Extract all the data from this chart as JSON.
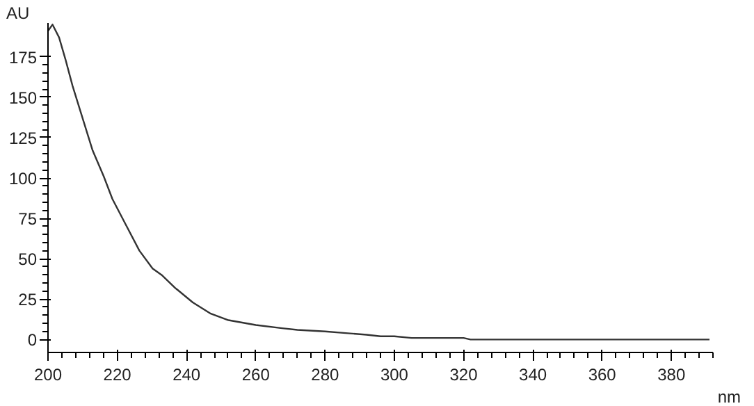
{
  "chart_data": {
    "type": "line",
    "ylabel": "AU",
    "xlabel": "nm",
    "x": [
      200,
      201.3,
      203.2,
      205.1,
      207.1,
      209.7,
      212.9,
      216.1,
      218.6,
      222.5,
      226.4,
      230.2,
      232.8,
      236.7,
      241.8,
      247,
      252.1,
      260,
      267.6,
      272,
      280,
      286,
      292,
      296,
      300,
      305,
      320,
      322,
      340,
      360,
      380,
      391
    ],
    "series": [
      {
        "color": "#333333",
        "values": [
          191,
          195,
          187,
          173,
          157,
          139,
          117,
          101,
          87,
          71,
          55,
          44,
          40,
          32,
          23,
          16,
          12,
          9,
          7,
          6,
          5,
          4,
          3,
          2,
          2,
          1,
          1,
          0,
          0,
          0,
          0,
          0
        ]
      }
    ],
    "xlim": [
      200,
      392
    ],
    "ylim": [
      -8,
      196
    ],
    "xticks": [
      200,
      220,
      240,
      260,
      280,
      300,
      320,
      340,
      360,
      380
    ],
    "yticks": [
      175,
      150,
      125,
      100,
      75,
      50,
      25,
      0
    ],
    "grid": false,
    "marker": "none",
    "line_style": "solid"
  }
}
